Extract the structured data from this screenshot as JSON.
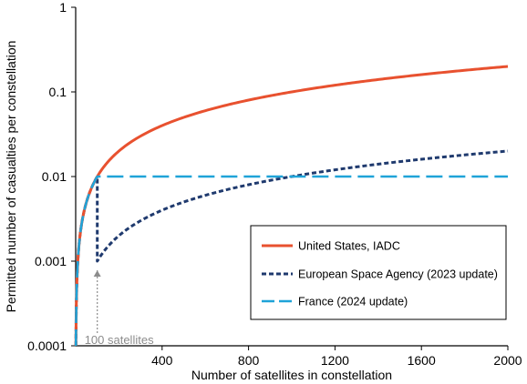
{
  "chart_data": {
    "type": "line",
    "xlabel": "Number of satellites in constellation",
    "ylabel": "Permitted number of casualties per constellation",
    "xlim": [
      0,
      2000
    ],
    "ylim": [
      0.0001,
      1
    ],
    "yscale": "log",
    "x_ticks": [
      "400",
      "800",
      "1200",
      "1600",
      "2000"
    ],
    "y_ticks": [
      "0.0001",
      "0.001",
      "0.01",
      "0.1",
      "1"
    ],
    "grid": false,
    "legend_position": "lower-right",
    "series": [
      {
        "name": "United States, IADC",
        "color": "#e8512f",
        "style": "solid",
        "formula": "0.0001 * N",
        "points": [
          [
            1,
            0.0001
          ],
          [
            100,
            0.01
          ],
          [
            400,
            0.04
          ],
          [
            800,
            0.08
          ],
          [
            1200,
            0.12
          ],
          [
            1600,
            0.16
          ],
          [
            2000,
            0.2
          ]
        ]
      },
      {
        "name": "European Space Agency (2023 update)",
        "color": "#1f3a6e",
        "style": "dashed",
        "formula": "0.0001 * N for N <= 100; 0.00001 * N for N > 100",
        "points": [
          [
            1,
            0.0001
          ],
          [
            100,
            0.01
          ],
          [
            100,
            0.001
          ],
          [
            400,
            0.004
          ],
          [
            800,
            0.008
          ],
          [
            1200,
            0.012
          ],
          [
            1600,
            0.016
          ],
          [
            2000,
            0.02
          ]
        ]
      },
      {
        "name": "France (2024 update)",
        "color": "#1fa3d8",
        "style": "long-dash",
        "formula": "0.0001 * N for N <= 100; 0.01 for N > 100",
        "points": [
          [
            1,
            0.0001
          ],
          [
            100,
            0.01
          ],
          [
            2000,
            0.01
          ]
        ]
      }
    ],
    "annotations": [
      {
        "text": "100 satellites",
        "x": 100,
        "y_from": 0.001,
        "y_to": 0.0001,
        "color": "#8c8c8c",
        "arrow": "up"
      }
    ]
  }
}
